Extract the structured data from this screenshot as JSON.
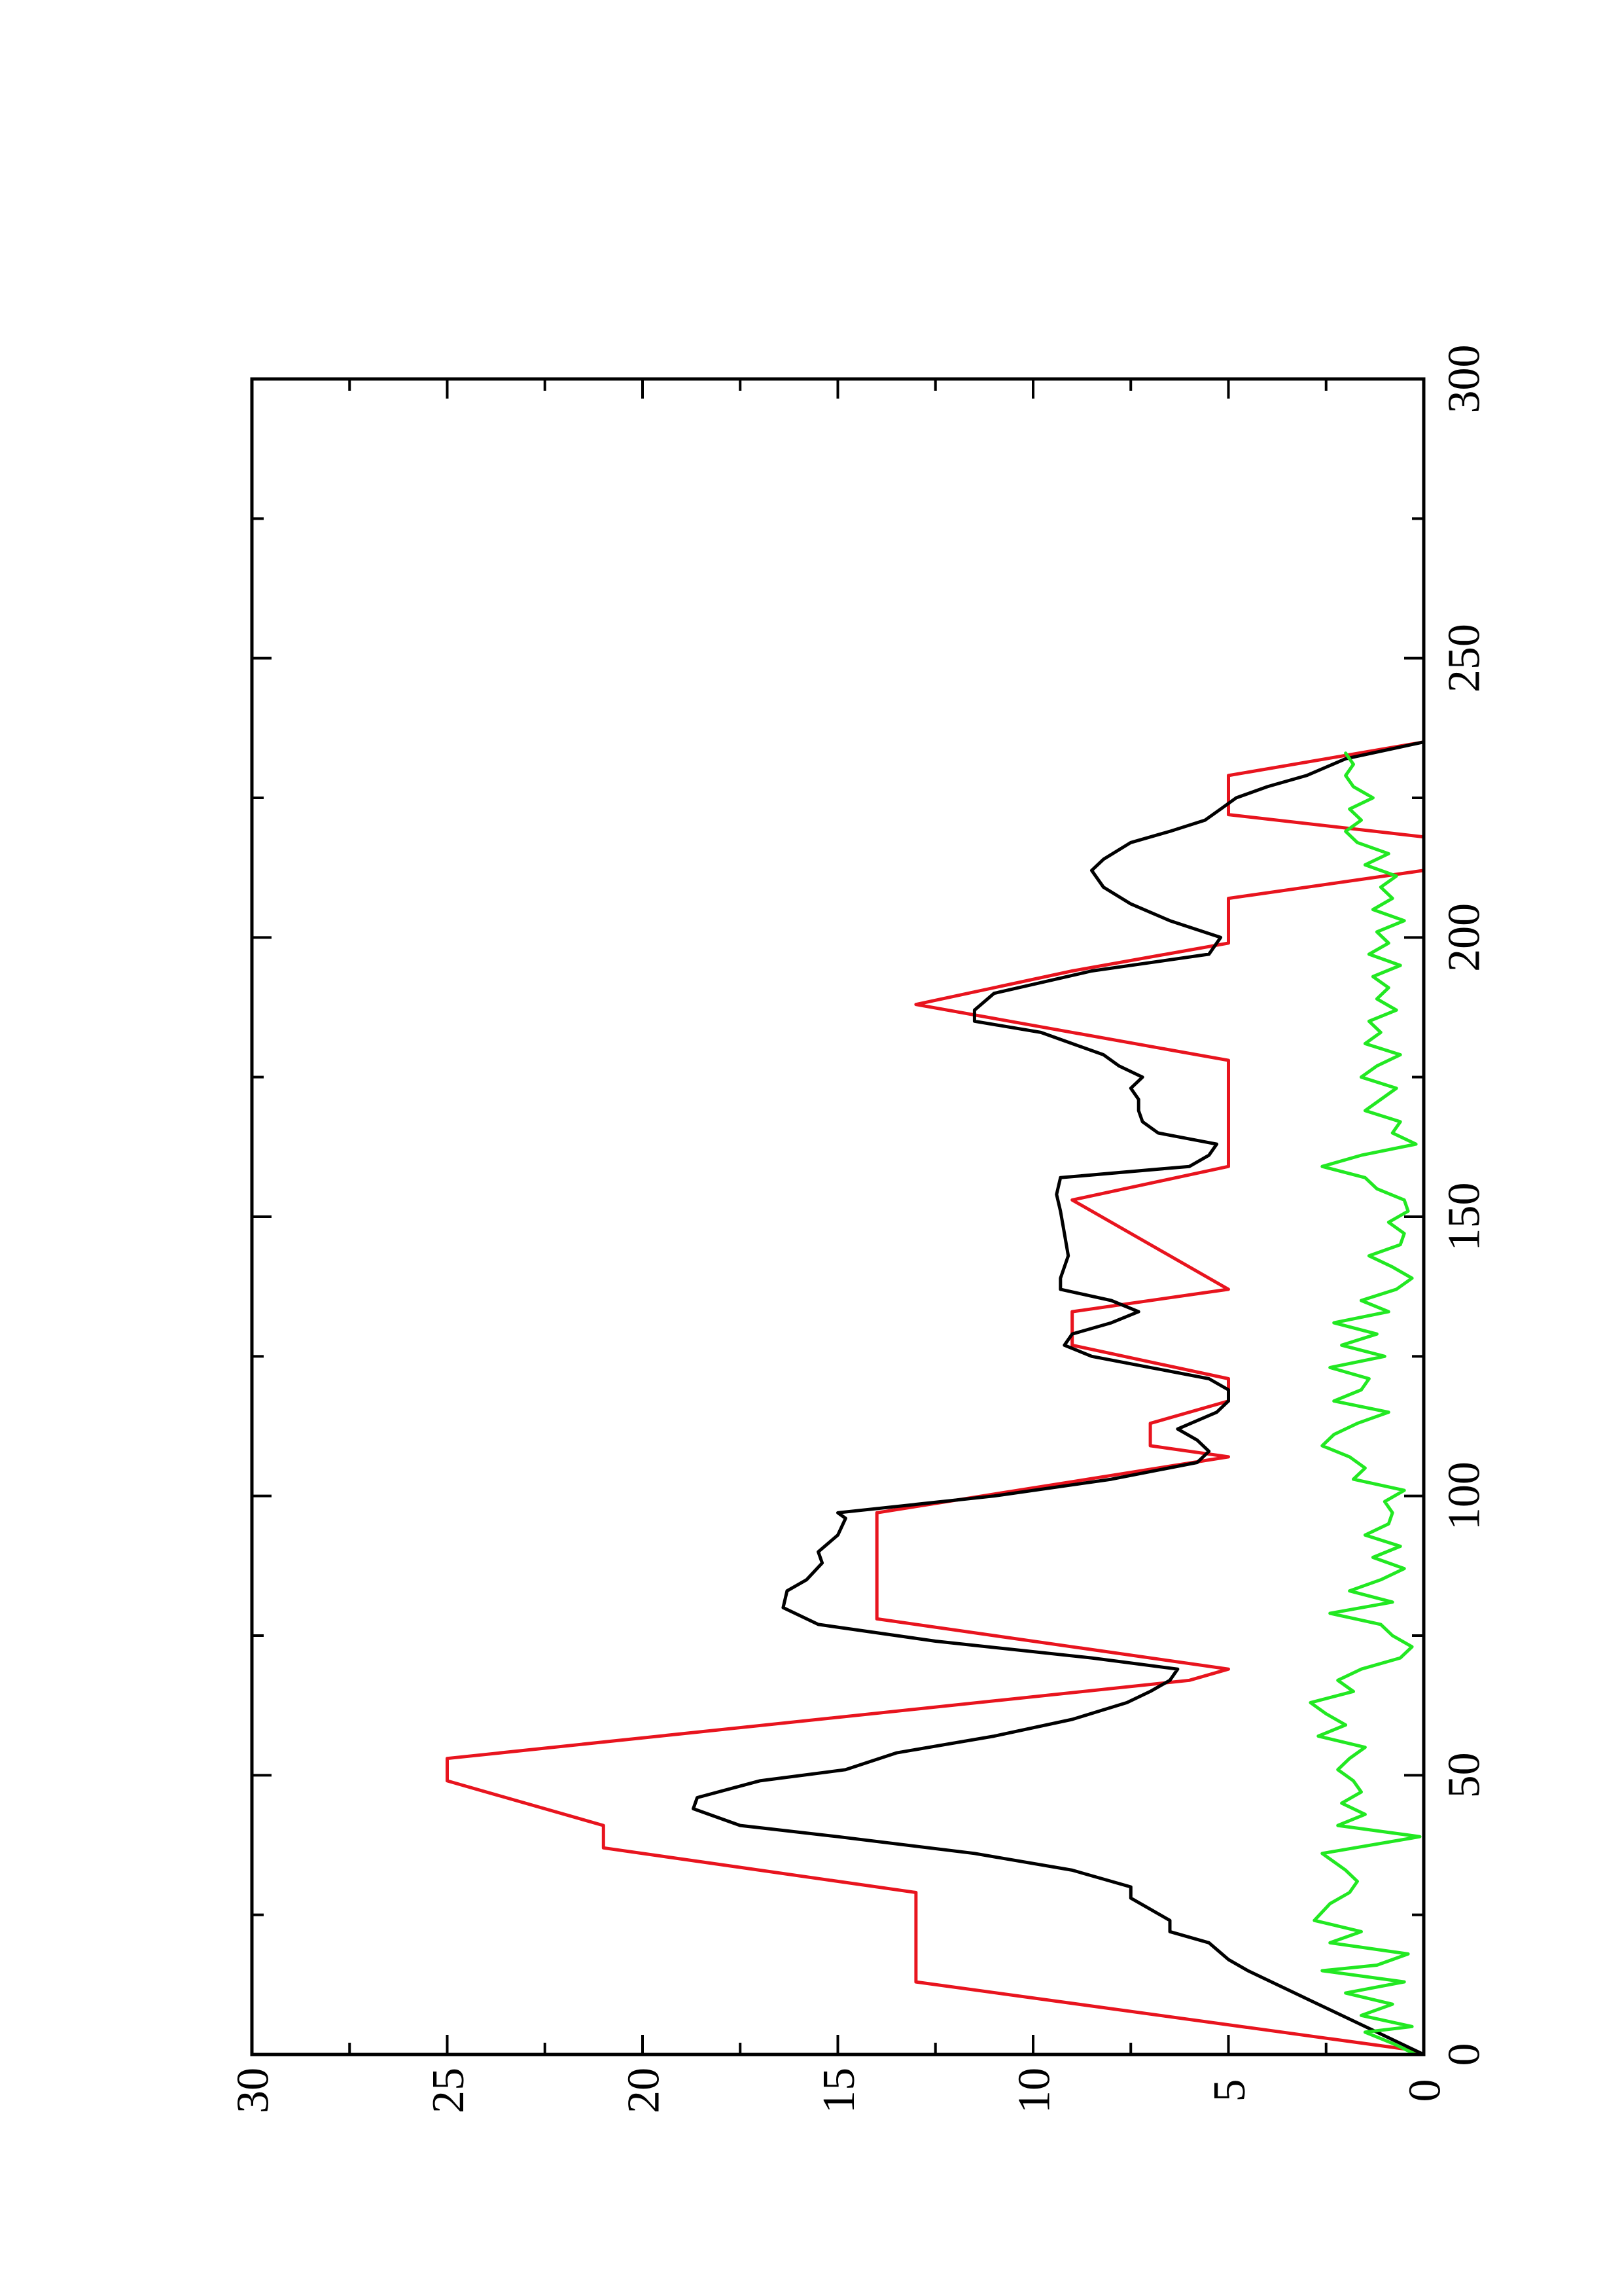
{
  "chart_data": {
    "type": "line",
    "orientation": "rotated-90-ccw",
    "xlim": [
      0,
      300
    ],
    "ylim": [
      0,
      30
    ],
    "x_ticks": [
      0,
      50,
      100,
      150,
      200,
      250,
      300
    ],
    "x_minor_ticks": [
      25,
      75,
      125,
      175,
      225,
      275
    ],
    "y_ticks": [
      0,
      5,
      10,
      15,
      20,
      25,
      30
    ],
    "y_minor_ticks": [
      2.5,
      7.5,
      12.5,
      17.5,
      22.5,
      27.5
    ],
    "grid": false,
    "legend": "none",
    "title": "",
    "xlabel": "",
    "ylabel": "",
    "series": [
      {
        "color": "#e8141e",
        "x": [
          0,
          1,
          13,
          29,
          37,
          41,
          49,
          53,
          67,
          69,
          78,
          97,
          107,
          109,
          113,
          117,
          121,
          127,
          133,
          137,
          153,
          159,
          178,
          183,
          188,
          194,
          199,
          207,
          212,
          218,
          222,
          229,
          235
        ],
        "y": [
          0,
          0.5,
          13,
          13,
          21,
          21,
          25,
          25,
          6,
          5,
          14,
          14,
          5,
          7,
          7,
          5,
          5,
          9,
          9,
          5,
          9,
          5,
          5,
          9,
          13,
          9,
          5,
          5,
          0,
          0,
          5,
          5,
          0
        ]
      },
      {
        "color": "#000000",
        "x": [
          0,
          5,
          10,
          15,
          17,
          20,
          22,
          24,
          26,
          28,
          30,
          33,
          36,
          39,
          41,
          44,
          46,
          49,
          51,
          54,
          57,
          60,
          63,
          65,
          67,
          69,
          71,
          74,
          77,
          80,
          83,
          85,
          88,
          90,
          93,
          96,
          97,
          100,
          103,
          106,
          108,
          110,
          112,
          115,
          117,
          119,
          121,
          123,
          125,
          127,
          129,
          131,
          133,
          135,
          137,
          139,
          143,
          147,
          151,
          154,
          157,
          159,
          161,
          163,
          165,
          167,
          169,
          171,
          173,
          175,
          177,
          179,
          181,
          183,
          185,
          187,
          190,
          194,
          197,
          200,
          203,
          206,
          209,
          212,
          214,
          217,
          219,
          221,
          223,
          225,
          227,
          229,
          232,
          235
        ],
        "y": [
          0,
          1.5,
          3,
          4.5,
          5,
          5.5,
          6.5,
          6.5,
          7,
          7.5,
          7.5,
          9,
          11.5,
          15,
          17.5,
          18.7,
          18.6,
          17,
          14.8,
          13.5,
          11,
          9,
          7.6,
          7,
          6.5,
          6.3,
          8.5,
          12.5,
          15.5,
          16.4,
          16.3,
          15.8,
          15.4,
          15.5,
          15,
          14.8,
          15,
          11,
          8,
          5.8,
          5.5,
          5.8,
          6.3,
          5.3,
          5,
          5,
          5.5,
          7,
          8.5,
          9.2,
          9,
          8,
          7.3,
          8,
          9.3,
          9.3,
          9.1,
          9.2,
          9.3,
          9.4,
          9.3,
          6,
          5.5,
          5.3,
          6.8,
          7.2,
          7.3,
          7.3,
          7.5,
          7.2,
          7.8,
          8.2,
          9.0,
          9.8,
          11.5,
          11.5,
          11.0,
          8.5,
          5.5,
          5.2,
          6.5,
          7.5,
          8.2,
          8.5,
          8.2,
          7.5,
          6.5,
          5.6,
          5.2,
          4.8,
          4.0,
          3.0,
          2.0,
          0
        ]
      },
      {
        "color": "#22e822",
        "x": [
          0,
          2,
          4,
          5,
          7,
          9,
          11,
          13,
          15,
          16,
          18,
          20,
          22,
          24,
          27,
          29,
          31,
          33,
          36,
          39,
          41,
          43,
          45,
          47,
          49,
          51,
          53,
          55,
          57,
          59,
          61,
          63,
          65,
          67,
          69,
          71,
          73,
          75,
          77,
          79,
          81,
          83,
          85,
          87,
          89,
          91,
          93,
          95,
          97,
          99,
          101,
          103,
          105,
          107,
          109,
          111,
          113,
          115,
          117,
          119,
          121,
          123,
          125,
          127,
          129,
          131,
          133,
          135,
          137,
          139,
          141,
          143,
          145,
          147,
          149,
          151,
          153,
          155,
          157,
          159,
          161,
          163,
          165,
          167,
          169,
          171,
          173,
          175,
          177,
          179,
          181,
          183,
          185,
          187,
          189,
          191,
          193,
          195,
          197,
          199,
          201,
          203,
          205,
          207,
          209,
          211,
          213,
          215,
          217,
          219,
          221,
          223,
          225,
          227,
          229,
          231,
          233
        ],
        "y": [
          0.2,
          0.8,
          1.5,
          0.3,
          1.6,
          0.8,
          2,
          0.5,
          2.6,
          1.2,
          0.4,
          2.4,
          1.6,
          2.8,
          2.4,
          1.9,
          1.7,
          2,
          2.6,
          0.1,
          2.2,
          1.5,
          2.1,
          1.6,
          1.8,
          2.2,
          1.9,
          1.5,
          2.7,
          2,
          2.5,
          2.9,
          1.8,
          2.2,
          1.6,
          0.6,
          0.3,
          0.8,
          1.1,
          2.4,
          0.8,
          1.9,
          1.1,
          0.5,
          1.3,
          0.6,
          1.5,
          0.9,
          0.8,
          1.0,
          0.5,
          1.8,
          1.5,
          1.9,
          2.6,
          2.3,
          1.7,
          0.9,
          2.3,
          1.6,
          1.4,
          2.4,
          1.0,
          2.1,
          1.2,
          2.3,
          0.9,
          1.6,
          0.7,
          0.3,
          0.8,
          1.4,
          0.6,
          0.5,
          0.9,
          0.4,
          0.5,
          1.2,
          1.5,
          2.6,
          1.6,
          0.2,
          0.8,
          0.6,
          1.5,
          1.1,
          0.7,
          1.6,
          1.2,
          0.6,
          1.5,
          1.1,
          1.4,
          0.7,
          1.2,
          0.9,
          1.3,
          0.6,
          1.4,
          0.9,
          1.2,
          0.5,
          1.3,
          0.8,
          1.1,
          0.7,
          1.5,
          0.9,
          1.7,
          2.0,
          1.6,
          1.9,
          1.3,
          1.8,
          2.0,
          1.8,
          2.0
        ]
      }
    ]
  }
}
